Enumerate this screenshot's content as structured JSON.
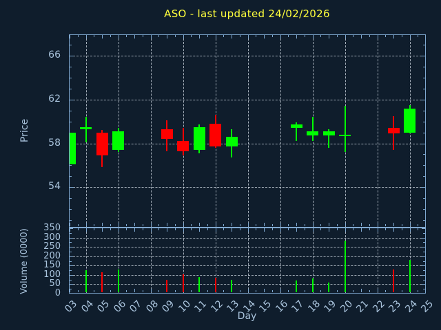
{
  "title": "ASO - last updated 24/02/2026",
  "colors": {
    "background": "#0f1d2c",
    "up": "#00ff00",
    "down": "#ff0000",
    "title_text": "#ffff3c",
    "axis_line": "#7fa8d0",
    "tick_label": "#a9c3dc",
    "grid": "#cdd6e0"
  },
  "chart_data": [
    {
      "type": "candlestick",
      "title": "ASO - last updated 24/02/2026",
      "xlabel": "Day",
      "ylabel": "Price",
      "x_tick_labels": [
        "03",
        "04",
        "05",
        "06",
        "07",
        "08",
        "09",
        "10",
        "11",
        "12",
        "13",
        "14",
        "15",
        "16",
        "17",
        "18",
        "19",
        "20",
        "21",
        "22",
        "23",
        "24",
        "25"
      ],
      "y_ticks": [
        54,
        58,
        62,
        66
      ],
      "ylim": [
        50.3,
        67.9
      ],
      "grid": true,
      "grid_x_days": [
        4,
        6,
        8,
        10,
        12,
        14,
        16,
        18,
        20,
        22,
        24
      ],
      "series": [
        {
          "day": "03",
          "open": 56.1,
          "high": 59.0,
          "low": 56.1,
          "close": 59.0,
          "direction": "up"
        },
        {
          "day": "04",
          "open": 59.3,
          "high": 60.4,
          "low": 58.1,
          "close": 59.5,
          "direction": "up"
        },
        {
          "day": "05",
          "open": 59.0,
          "high": 59.2,
          "low": 55.8,
          "close": 56.9,
          "direction": "down"
        },
        {
          "day": "06",
          "open": 57.4,
          "high": 59.4,
          "low": 57.2,
          "close": 59.1,
          "direction": "up"
        },
        {
          "day": "09",
          "open": 59.3,
          "high": 60.1,
          "low": 57.3,
          "close": 58.4,
          "direction": "down"
        },
        {
          "day": "10",
          "open": 58.2,
          "high": 59.4,
          "low": 56.9,
          "close": 57.3,
          "direction": "down"
        },
        {
          "day": "11",
          "open": 57.4,
          "high": 59.7,
          "low": 57.1,
          "close": 59.5,
          "direction": "up"
        },
        {
          "day": "12",
          "open": 59.8,
          "high": 60.6,
          "low": 57.6,
          "close": 57.7,
          "direction": "down"
        },
        {
          "day": "13",
          "open": 57.7,
          "high": 59.3,
          "low": 56.7,
          "close": 58.6,
          "direction": "up"
        },
        {
          "day": "17",
          "open": 59.4,
          "high": 59.9,
          "low": 58.2,
          "close": 59.7,
          "direction": "up"
        },
        {
          "day": "18",
          "open": 58.7,
          "high": 60.4,
          "low": 58.2,
          "close": 59.1,
          "direction": "up"
        },
        {
          "day": "19",
          "open": 58.7,
          "high": 59.3,
          "low": 57.6,
          "close": 59.1,
          "direction": "up"
        },
        {
          "day": "20",
          "open": 58.7,
          "high": 61.4,
          "low": 57.2,
          "close": 58.8,
          "direction": "up"
        },
        {
          "day": "23",
          "open": 59.4,
          "high": 60.5,
          "low": 57.4,
          "close": 58.9,
          "direction": "down"
        },
        {
          "day": "24",
          "open": 59.0,
          "high": 61.5,
          "low": 58.9,
          "close": 61.2,
          "direction": "up"
        }
      ]
    },
    {
      "type": "bar",
      "xlabel": "Day",
      "ylabel": "Volume (0000)",
      "y_ticks": [
        0,
        50,
        100,
        150,
        200,
        250,
        300,
        350
      ],
      "ylim": [
        0,
        350
      ],
      "grid": true,
      "values": [
        {
          "day": "04",
          "value": 125,
          "direction": "up"
        },
        {
          "day": "05",
          "value": 115,
          "direction": "down"
        },
        {
          "day": "06",
          "value": 130,
          "direction": "up"
        },
        {
          "day": "09",
          "value": 75,
          "direction": "down"
        },
        {
          "day": "10",
          "value": 105,
          "direction": "down"
        },
        {
          "day": "11",
          "value": 87,
          "direction": "up"
        },
        {
          "day": "12",
          "value": 84,
          "direction": "down"
        },
        {
          "day": "13",
          "value": 72,
          "direction": "up"
        },
        {
          "day": "17",
          "value": 70,
          "direction": "up"
        },
        {
          "day": "18",
          "value": 80,
          "direction": "up"
        },
        {
          "day": "19",
          "value": 58,
          "direction": "up"
        },
        {
          "day": "20",
          "value": 285,
          "direction": "up"
        },
        {
          "day": "23",
          "value": 130,
          "direction": "down"
        },
        {
          "day": "24",
          "value": 180,
          "direction": "up"
        }
      ]
    }
  ]
}
